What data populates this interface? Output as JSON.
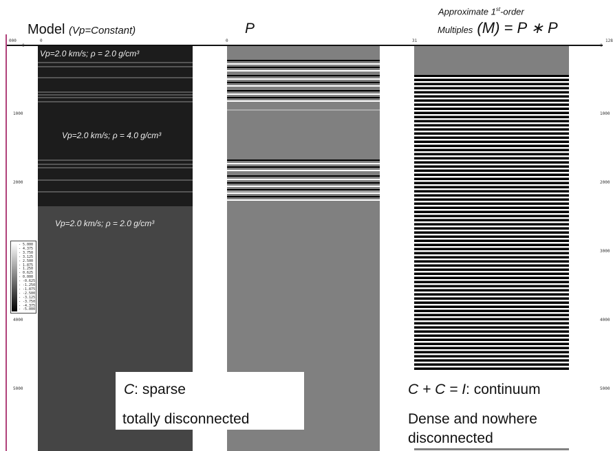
{
  "titles": {
    "model_main": "Model",
    "model_sub": "(Vp=Constant)",
    "p": "P",
    "multiples_line1": "Approximate 1",
    "multiples_line1_sup": "st",
    "multiples_line1_end": "-order",
    "multiples_word": "Multiples",
    "multiples_m": "(M)",
    "multiples_eq": "= P ∗ P"
  },
  "axis": {
    "top_left": "0",
    "left_ticks": [
      "1000",
      "2000",
      "3000",
      "4000",
      "5000"
    ],
    "right_ticks": [
      "1000",
      "2000",
      "3000",
      "4000",
      "5000"
    ],
    "top_labels": [
      "0",
      "0",
      "31",
      "0"
    ],
    "left_corner": "000",
    "right_corner": "128"
  },
  "model": {
    "layer1_label": "Vp=2.0 km/s; ρ = 2.0 g/cm³",
    "layer2_label": "Vp=2.0 km/s; ρ = 4.0 g/cm³",
    "layer3_label": "Vp=2.0 km/s; ρ = 2.0 g/cm³"
  },
  "legend": {
    "values": [
      "5.000",
      "4.375",
      "3.750",
      "3.125",
      "2.500",
      "1.875",
      "1.250",
      "0.625",
      "0.000",
      "-0.625",
      "-1.250",
      "-1.875",
      "-2.500",
      "-3.125",
      "-3.750",
      "-4.375",
      "-5.000"
    ]
  },
  "notes": {
    "left_line1_c": "C",
    "left_line1_rest": ": sparse",
    "left_line2": "totally disconnected",
    "right_line1": "C + C = I",
    "right_line1_rest": ": continuum",
    "right_line2": "Dense and nowhere",
    "right_line3": "disconnected"
  },
  "colors": {
    "layer_dark": "#1c1c1c",
    "layer_light": "#454545",
    "trace_gray": "#808080",
    "accent_bar": "#b0407a"
  }
}
